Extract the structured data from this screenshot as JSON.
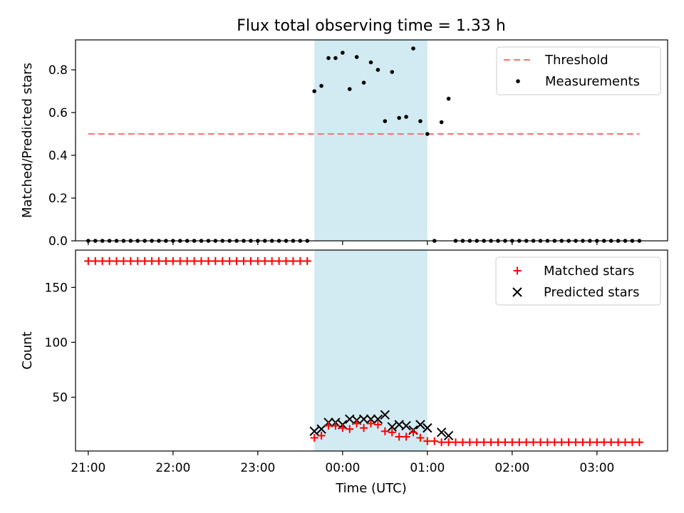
{
  "figure": {
    "title": "Flux total observing time = 1.33 h",
    "xlabel": "Time (UTC)"
  },
  "chart_data": [
    {
      "type": "scatter",
      "panel": "top",
      "title": "Flux total observing time = 1.33 h",
      "ylabel": "Matched/Predicted stars",
      "xlim": [
        "20:51",
        "03:50"
      ],
      "ylim": [
        0,
        0.94
      ],
      "x_tick_labels": [
        "21:00",
        "22:00",
        "23:00",
        "00:00",
        "01:00",
        "02:00",
        "03:00"
      ],
      "y_ticks": [
        0.0,
        0.2,
        0.4,
        0.6,
        0.8
      ],
      "y_tick_labels": [
        "0.0",
        "0.2",
        "0.4",
        "0.6",
        "0.8"
      ],
      "shaded_region": {
        "start": "23:40",
        "end": "01:00",
        "color": "#add8e6"
      },
      "legend_position": "upper right",
      "threshold": {
        "name": "Threshold",
        "value": 0.5,
        "x_start": "21:00",
        "x_end": "03:30",
        "color": "#ff7373",
        "style": "dashed"
      },
      "series": [
        {
          "name": "Measurements",
          "color": "#000000",
          "marker": "dot",
          "points": [
            [
              "21:00",
              0
            ],
            [
              "21:05",
              0
            ],
            [
              "21:10",
              0
            ],
            [
              "21:15",
              0
            ],
            [
              "21:20",
              0
            ],
            [
              "21:25",
              0
            ],
            [
              "21:30",
              0
            ],
            [
              "21:35",
              0
            ],
            [
              "21:40",
              0
            ],
            [
              "21:45",
              0
            ],
            [
              "21:50",
              0
            ],
            [
              "21:55",
              0
            ],
            [
              "22:00",
              0
            ],
            [
              "22:05",
              0
            ],
            [
              "22:10",
              0
            ],
            [
              "22:15",
              0
            ],
            [
              "22:20",
              0
            ],
            [
              "22:25",
              0
            ],
            [
              "22:30",
              0
            ],
            [
              "22:35",
              0
            ],
            [
              "22:40",
              0
            ],
            [
              "22:45",
              0
            ],
            [
              "22:50",
              0
            ],
            [
              "22:55",
              0
            ],
            [
              "23:00",
              0
            ],
            [
              "23:05",
              0
            ],
            [
              "23:10",
              0
            ],
            [
              "23:15",
              0
            ],
            [
              "23:20",
              0
            ],
            [
              "23:25",
              0
            ],
            [
              "23:30",
              0
            ],
            [
              "23:35",
              0
            ],
            [
              "23:40",
              0.7
            ],
            [
              "23:45",
              0.725
            ],
            [
              "23:50",
              0.855
            ],
            [
              "23:55",
              0.855
            ],
            [
              "00:00",
              0.88
            ],
            [
              "00:05",
              0.71
            ],
            [
              "00:10",
              0.86
            ],
            [
              "00:15",
              0.74
            ],
            [
              "00:20",
              0.835
            ],
            [
              "00:25",
              0.8
            ],
            [
              "00:30",
              0.56
            ],
            [
              "00:35",
              0.79
            ],
            [
              "00:40",
              0.575
            ],
            [
              "00:45",
              0.58
            ],
            [
              "00:50",
              0.9
            ],
            [
              "00:55",
              0.56
            ],
            [
              "01:00",
              0.5
            ],
            [
              "01:05",
              0
            ],
            [
              "01:10",
              0.555
            ],
            [
              "01:15",
              0.665
            ],
            [
              "01:20",
              0
            ],
            [
              "01:25",
              0
            ],
            [
              "01:30",
              0
            ],
            [
              "01:35",
              0
            ],
            [
              "01:40",
              0
            ],
            [
              "01:45",
              0
            ],
            [
              "01:50",
              0
            ],
            [
              "01:55",
              0
            ],
            [
              "02:00",
              0
            ],
            [
              "02:05",
              0
            ],
            [
              "02:10",
              0
            ],
            [
              "02:15",
              0
            ],
            [
              "02:20",
              0
            ],
            [
              "02:25",
              0
            ],
            [
              "02:30",
              0
            ],
            [
              "02:35",
              0
            ],
            [
              "02:40",
              0
            ],
            [
              "02:45",
              0
            ],
            [
              "02:50",
              0
            ],
            [
              "02:55",
              0
            ],
            [
              "03:00",
              0
            ],
            [
              "03:05",
              0
            ],
            [
              "03:10",
              0
            ],
            [
              "03:15",
              0
            ],
            [
              "03:20",
              0
            ],
            [
              "03:25",
              0
            ],
            [
              "03:30",
              0
            ]
          ]
        }
      ]
    },
    {
      "type": "scatter",
      "panel": "bottom",
      "ylabel": "Count",
      "xlabel": "Time (UTC)",
      "xlim": [
        "20:51",
        "03:50"
      ],
      "ylim": [
        1,
        184
      ],
      "x_tick_labels": [
        "21:00",
        "22:00",
        "23:00",
        "00:00",
        "01:00",
        "02:00",
        "03:00"
      ],
      "y_ticks": [
        50,
        100,
        150
      ],
      "y_tick_labels": [
        "50",
        "100",
        "150"
      ],
      "shaded_region": {
        "start": "23:40",
        "end": "01:00",
        "color": "#add8e6"
      },
      "legend_position": "upper right",
      "series": [
        {
          "name": "Matched stars",
          "color": "#ff0000",
          "marker": "plus",
          "points": [
            [
              "21:00",
              174
            ],
            [
              "21:05",
              174
            ],
            [
              "21:10",
              174
            ],
            [
              "21:15",
              174
            ],
            [
              "21:20",
              174
            ],
            [
              "21:25",
              174
            ],
            [
              "21:30",
              174
            ],
            [
              "21:35",
              174
            ],
            [
              "21:40",
              174
            ],
            [
              "21:45",
              174
            ],
            [
              "21:50",
              174
            ],
            [
              "21:55",
              174
            ],
            [
              "22:00",
              174
            ],
            [
              "22:05",
              174
            ],
            [
              "22:10",
              174
            ],
            [
              "22:15",
              174
            ],
            [
              "22:20",
              174
            ],
            [
              "22:25",
              174
            ],
            [
              "22:30",
              174
            ],
            [
              "22:35",
              174
            ],
            [
              "22:40",
              174
            ],
            [
              "22:45",
              174
            ],
            [
              "22:50",
              174
            ],
            [
              "22:55",
              174
            ],
            [
              "23:00",
              174
            ],
            [
              "23:05",
              174
            ],
            [
              "23:10",
              174
            ],
            [
              "23:15",
              174
            ],
            [
              "23:20",
              174
            ],
            [
              "23:25",
              174
            ],
            [
              "23:30",
              174
            ],
            [
              "23:35",
              174
            ],
            [
              "23:40",
              13
            ],
            [
              "23:45",
              15
            ],
            [
              "23:50",
              24
            ],
            [
              "23:55",
              24
            ],
            [
              "00:00",
              22
            ],
            [
              "00:05",
              21
            ],
            [
              "00:10",
              26
            ],
            [
              "00:15",
              22
            ],
            [
              "00:20",
              26
            ],
            [
              "00:25",
              25
            ],
            [
              "00:30",
              19
            ],
            [
              "00:35",
              18
            ],
            [
              "00:40",
              14
            ],
            [
              "00:45",
              14
            ],
            [
              "00:50",
              18
            ],
            [
              "00:55",
              13
            ],
            [
              "01:00",
              10
            ],
            [
              "01:05",
              10
            ],
            [
              "01:10",
              9
            ],
            [
              "01:15",
              9
            ],
            [
              "01:20",
              9
            ],
            [
              "01:25",
              9
            ],
            [
              "01:30",
              9
            ],
            [
              "01:35",
              9
            ],
            [
              "01:40",
              9
            ],
            [
              "01:45",
              9
            ],
            [
              "01:50",
              9
            ],
            [
              "01:55",
              9
            ],
            [
              "02:00",
              9
            ],
            [
              "02:05",
              9
            ],
            [
              "02:10",
              9
            ],
            [
              "02:15",
              9
            ],
            [
              "02:20",
              9
            ],
            [
              "02:25",
              9
            ],
            [
              "02:30",
              9
            ],
            [
              "02:35",
              9
            ],
            [
              "02:40",
              9
            ],
            [
              "02:45",
              9
            ],
            [
              "02:50",
              9
            ],
            [
              "02:55",
              9
            ],
            [
              "03:00",
              9
            ],
            [
              "03:05",
              9
            ],
            [
              "03:10",
              9
            ],
            [
              "03:15",
              9
            ],
            [
              "03:20",
              9
            ],
            [
              "03:25",
              9
            ],
            [
              "03:30",
              9
            ]
          ]
        },
        {
          "name": "Predicted stars",
          "color": "#000000",
          "marker": "x",
          "points": [
            [
              "23:40",
              19
            ],
            [
              "23:45",
              21
            ],
            [
              "23:50",
              27
            ],
            [
              "23:55",
              27
            ],
            [
              "00:00",
              25
            ],
            [
              "00:05",
              30
            ],
            [
              "00:10",
              29
            ],
            [
              "00:15",
              30
            ],
            [
              "00:20",
              30
            ],
            [
              "00:25",
              30
            ],
            [
              "00:30",
              34
            ],
            [
              "00:35",
              23
            ],
            [
              "00:40",
              25
            ],
            [
              "00:45",
              24
            ],
            [
              "00:50",
              20
            ],
            [
              "00:55",
              25
            ],
            [
              "01:00",
              22
            ],
            [
              "01:10",
              18
            ],
            [
              "01:15",
              15
            ]
          ]
        }
      ]
    }
  ]
}
